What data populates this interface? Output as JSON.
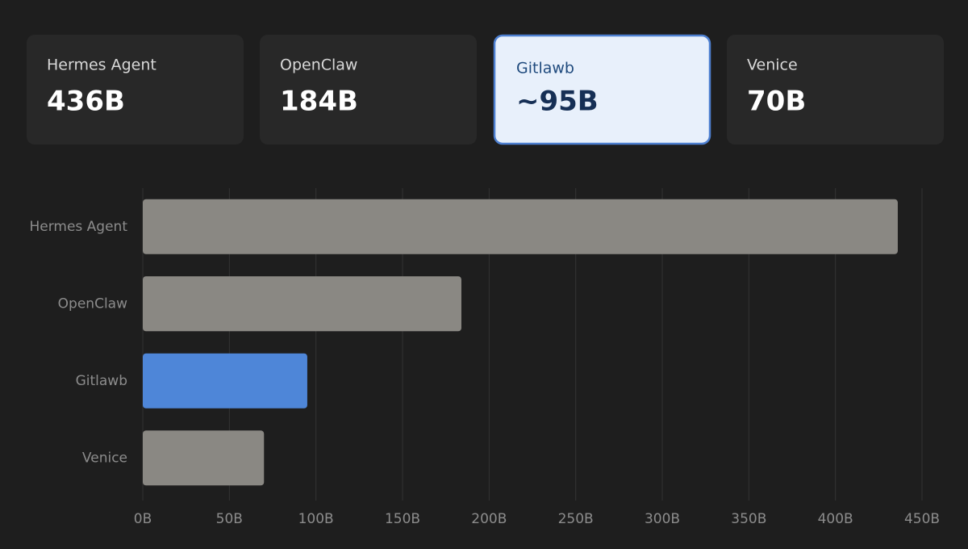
{
  "cards": [
    {
      "label": "Hermes Agent",
      "value": "436B",
      "selected": false
    },
    {
      "label": "OpenClaw",
      "value": "184B",
      "selected": false
    },
    {
      "label": "Gitlawb",
      "value": "~95B",
      "selected": true
    },
    {
      "label": "Venice",
      "value": "70B",
      "selected": false
    }
  ],
  "chart_data": {
    "type": "hbar",
    "categories": [
      "Hermes Agent",
      "OpenClaw",
      "Gitlawb",
      "Venice"
    ],
    "values": [
      436,
      184,
      95,
      70
    ],
    "colors": [
      "#8a8883",
      "#8a8883",
      "#4e86d8",
      "#8a8883"
    ],
    "xlim": [
      0,
      450
    ],
    "xticks": [
      {
        "value": 0,
        "label": "0B"
      },
      {
        "value": 50,
        "label": "50B"
      },
      {
        "value": 100,
        "label": "100B"
      },
      {
        "value": 150,
        "label": "150B"
      },
      {
        "value": 200,
        "label": "200B"
      },
      {
        "value": 250,
        "label": "250B"
      },
      {
        "value": 300,
        "label": "300B"
      },
      {
        "value": 350,
        "label": "350B"
      },
      {
        "value": 400,
        "label": "400B"
      },
      {
        "value": 450,
        "label": "450B"
      }
    ],
    "grid": true
  }
}
